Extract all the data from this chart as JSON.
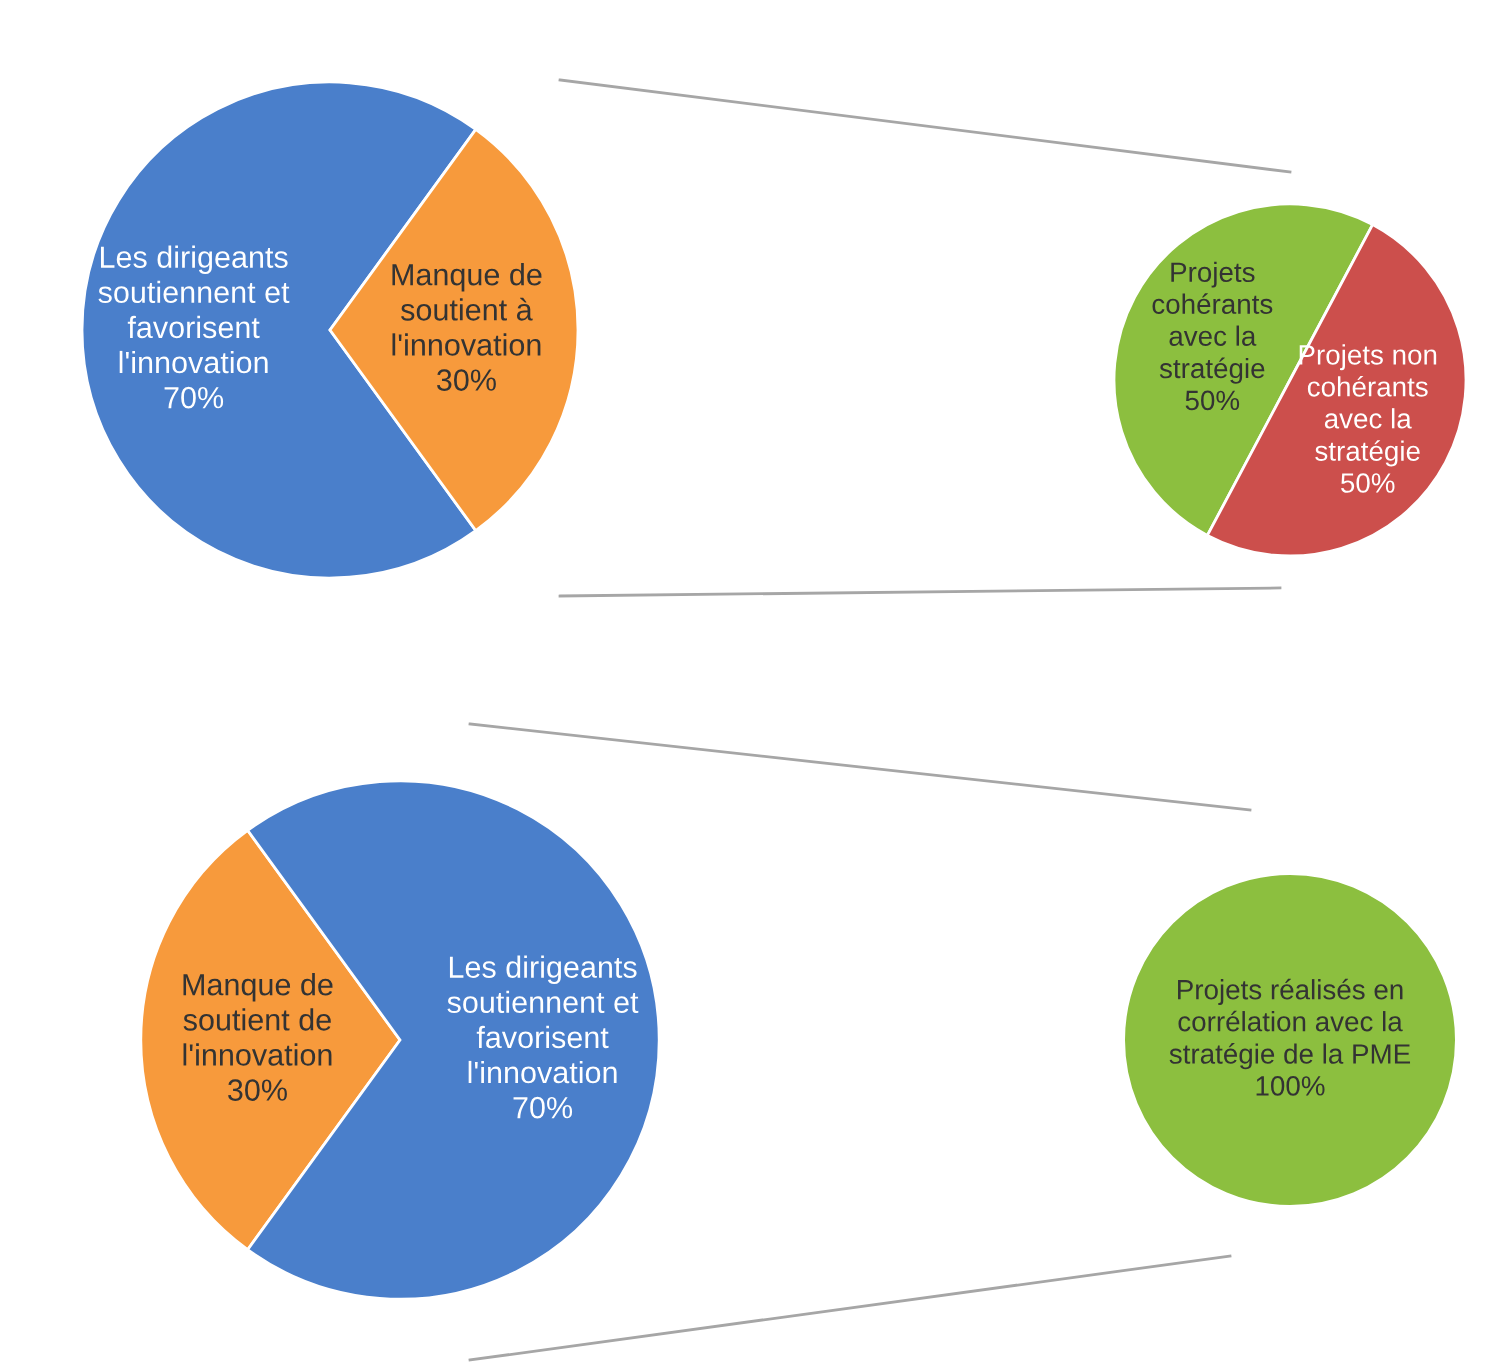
{
  "chart_data": [
    {
      "type": "pie",
      "categories": [
        "Les dirigeants\nsoutiennent et\nfavorisent\nl'innovation",
        "Manque de\nsoutient à\nl'innovation"
      ],
      "values": [
        70,
        30
      ],
      "colors": [
        "#4a7fcb",
        "#f79a3c"
      ],
      "value_labels": [
        "70%",
        "30%"
      ]
    },
    {
      "type": "pie",
      "categories": [
        "Projets\ncohérants\navec la\nstratégie",
        "Projets non\ncohérants\navec la\nstratégie"
      ],
      "values": [
        50,
        50
      ],
      "colors": [
        "#8cbf3f",
        "#cc4f4c"
      ],
      "value_labels": [
        "50%",
        "50%"
      ]
    },
    {
      "type": "pie",
      "categories": [
        "Manque de\nsoutient de\nl'innovation",
        "Les dirigeants\nsoutiennent et\nfavorisent\nl'innovation"
      ],
      "values": [
        30,
        70
      ],
      "colors": [
        "#f79a3c",
        "#4a7fcb"
      ],
      "value_labels": [
        "30%",
        "70%"
      ]
    },
    {
      "type": "pie",
      "categories": [
        "Projets réalisés en\ncorrélation avec la\nstratégie de la PME"
      ],
      "values": [
        100
      ],
      "colors": [
        "#8cbf3f"
      ],
      "value_labels": [
        "100%"
      ]
    }
  ]
}
